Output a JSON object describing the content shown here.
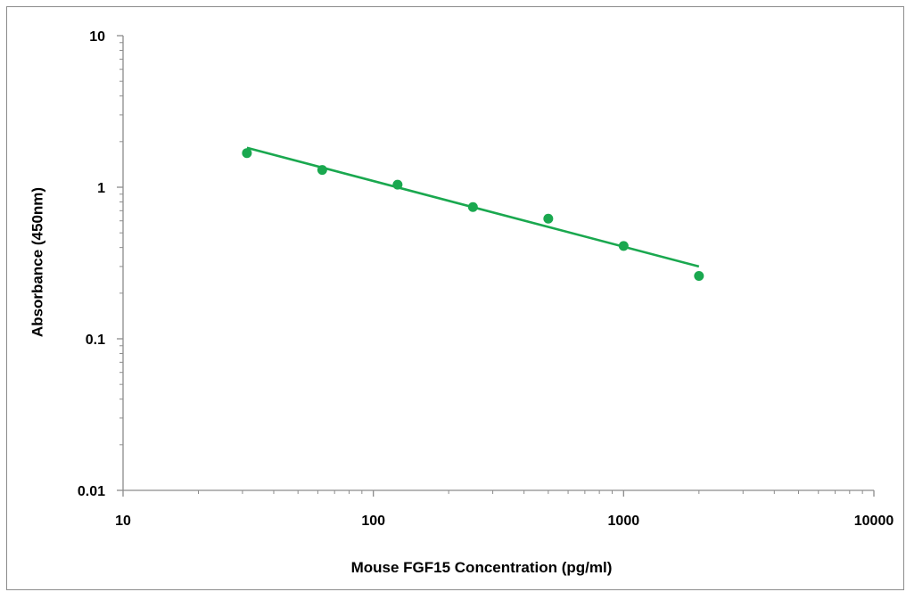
{
  "chart_data": {
    "type": "scatter",
    "title": "",
    "xlabel": "Mouse FGF15 Concentration (pg/ml)",
    "ylabel": "Absorbance (450nm)",
    "xscale": "log",
    "yscale": "log",
    "xlim": [
      10,
      10000
    ],
    "ylim": [
      0.01,
      10
    ],
    "x_ticks": [
      "10",
      "100",
      "1000",
      "10000"
    ],
    "y_ticks": [
      "0.01",
      "0.1",
      "1",
      "10"
    ],
    "grid": false,
    "legend": "none",
    "series": [
      {
        "color": "#1aa84f",
        "x": [
          31.25,
          62.5,
          125,
          250,
          500,
          1000,
          2000
        ],
        "y": [
          1.68,
          1.3,
          1.04,
          0.74,
          0.62,
          0.41,
          0.26
        ]
      }
    ],
    "trendline": {
      "type": "power",
      "color": "#1aa84f",
      "x": [
        31.25,
        2000
      ],
      "y": [
        1.82,
        0.3
      ]
    }
  }
}
